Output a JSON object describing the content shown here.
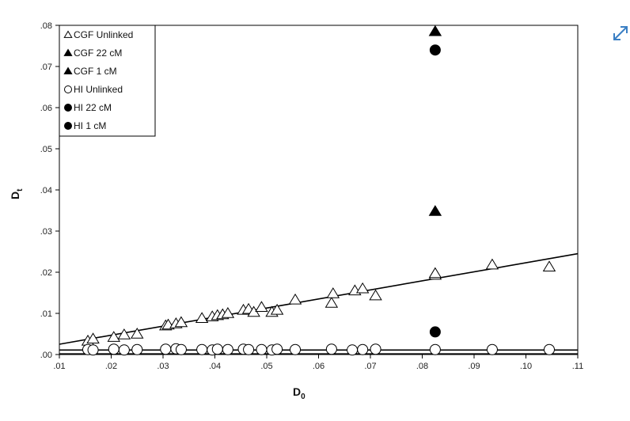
{
  "chart_data": {
    "type": "scatter",
    "xlabel": "D",
    "xlabel_sub": "0",
    "ylabel": "D",
    "ylabel_sub": "t",
    "xlim": [
      0.01,
      0.11
    ],
    "ylim": [
      0.0,
      0.08
    ],
    "x_ticks": [
      0.01,
      0.02,
      0.03,
      0.04,
      0.05,
      0.06,
      0.07,
      0.08,
      0.09,
      0.1,
      0.11
    ],
    "x_tick_labels": [
      ".01",
      ".02",
      ".03",
      ".04",
      ".05",
      ".06",
      ".07",
      ".08",
      ".09",
      ".10",
      ".11"
    ],
    "y_ticks": [
      0.0,
      0.01,
      0.02,
      0.03,
      0.04,
      0.05,
      0.06,
      0.07,
      0.08
    ],
    "y_tick_labels": [
      ".00",
      ".01",
      ".02",
      ".03",
      ".04",
      ".05",
      ".06",
      ".07",
      ".08"
    ],
    "grid": false,
    "legend_position": "top-left",
    "series": [
      {
        "name": "CGF Unlinked",
        "marker": "triangle-open",
        "x": [
          0.0155,
          0.0165,
          0.0205,
          0.0225,
          0.025,
          0.0305,
          0.031,
          0.0325,
          0.0335,
          0.0375,
          0.0395,
          0.0405,
          0.0415,
          0.0425,
          0.0455,
          0.0465,
          0.0475,
          0.049,
          0.051,
          0.052,
          0.0555,
          0.0625,
          0.0628,
          0.067,
          0.0685,
          0.071,
          0.0825,
          0.0825,
          0.0935,
          0.1045
        ],
        "y": [
          0.0033,
          0.0038,
          0.0042,
          0.0048,
          0.005,
          0.007,
          0.0072,
          0.0075,
          0.0078,
          0.0088,
          0.0092,
          0.0095,
          0.0097,
          0.01,
          0.0108,
          0.011,
          0.0103,
          0.0115,
          0.0103,
          0.0108,
          0.0133,
          0.0125,
          0.0148,
          0.0155,
          0.016,
          0.0143,
          0.0193,
          0.0197,
          0.0218,
          0.0213
        ]
      },
      {
        "name": "CGF 22 cM",
        "marker": "triangle-filled",
        "x": [
          0.0825
        ],
        "y": [
          0.0785
        ]
      },
      {
        "name": "CGF 1 cM",
        "marker": "triangle-filled",
        "x": [
          0.0825
        ],
        "y": [
          0.0348
        ]
      },
      {
        "name": "HI Unlinked",
        "marker": "circle-open",
        "x": [
          0.0155,
          0.0165,
          0.0205,
          0.0225,
          0.025,
          0.0305,
          0.0325,
          0.0335,
          0.0375,
          0.0395,
          0.0405,
          0.0425,
          0.0455,
          0.0465,
          0.049,
          0.051,
          0.052,
          0.0555,
          0.0625,
          0.0665,
          0.0685,
          0.071,
          0.0825,
          0.0935,
          0.1045
        ],
        "y": [
          0.0012,
          0.0011,
          0.0013,
          0.0011,
          0.0012,
          0.0013,
          0.0014,
          0.0012,
          0.0012,
          0.0011,
          0.0013,
          0.0012,
          0.0013,
          0.0012,
          0.0012,
          0.0011,
          0.0013,
          0.0012,
          0.0013,
          0.0011,
          0.0012,
          0.0013,
          0.0012,
          0.0012,
          0.0012
        ]
      },
      {
        "name": "HI 22 cM",
        "marker": "circle-filled",
        "x": [
          0.0825
        ],
        "y": [
          0.074
        ]
      },
      {
        "name": "HI 1 cM",
        "marker": "circle-filled",
        "x": [
          0.0825
        ],
        "y": [
          0.0055
        ]
      }
    ],
    "trendlines": [
      {
        "series": "CGF Unlinked",
        "x": [
          0.01,
          0.11
        ],
        "y": [
          0.0025,
          0.0245
        ]
      },
      {
        "series": "HI Unlinked",
        "x": [
          0.01,
          0.11
        ],
        "y": [
          0.0011,
          0.0011
        ]
      }
    ]
  },
  "ui": {
    "expand_icon": "expand-icon",
    "accent_color": "#3b7fc4"
  }
}
